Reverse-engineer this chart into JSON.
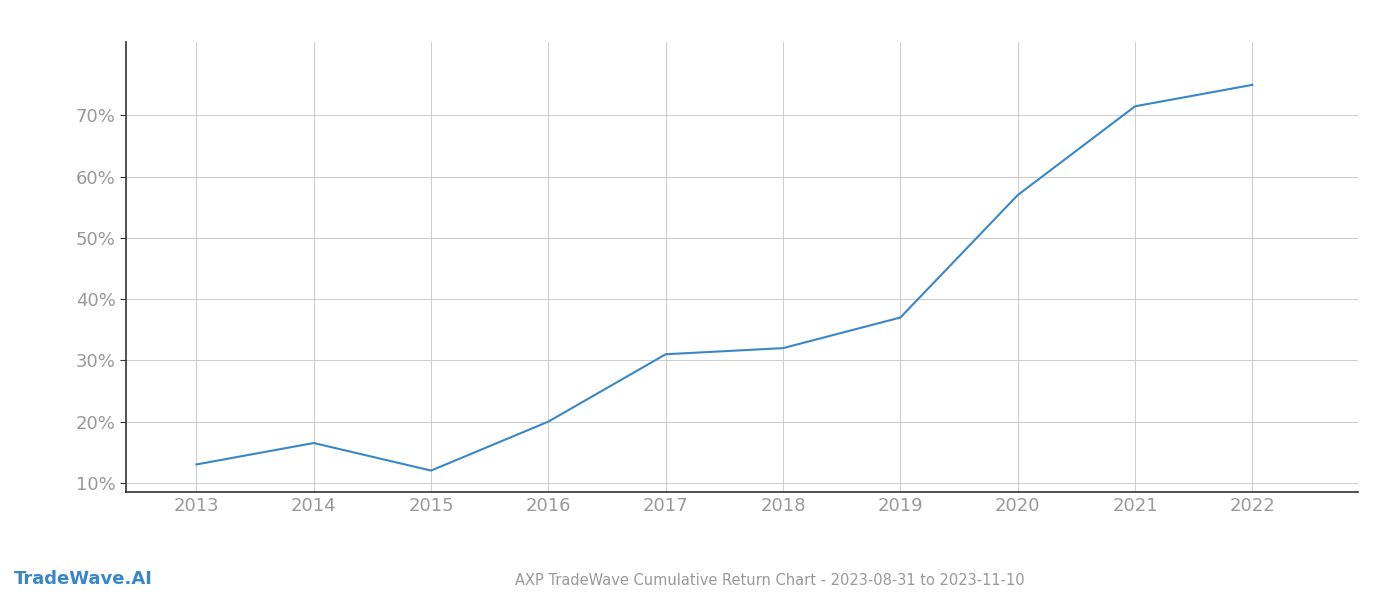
{
  "title": "AXP TradeWave Cumulative Return Chart - 2023-08-31 to 2023-11-10",
  "watermark": "TradeWave.AI",
  "line_color": "#3a87c8",
  "background_color": "#ffffff",
  "grid_color": "#cccccc",
  "x_years": [
    2013,
    2014,
    2015,
    2016,
    2017,
    2018,
    2019,
    2020,
    2021,
    2022
  ],
  "y_values": [
    0.13,
    0.165,
    0.12,
    0.2,
    0.31,
    0.32,
    0.37,
    0.57,
    0.715,
    0.75
  ],
  "xlim": [
    2012.4,
    2022.9
  ],
  "ylim": [
    0.085,
    0.82
  ],
  "yticks": [
    0.1,
    0.2,
    0.3,
    0.4,
    0.5,
    0.6,
    0.7
  ],
  "xticks": [
    2013,
    2014,
    2015,
    2016,
    2017,
    2018,
    2019,
    2020,
    2021,
    2022
  ],
  "line_width": 1.5,
  "title_fontsize": 10.5,
  "tick_fontsize": 13,
  "watermark_fontsize": 13,
  "spine_color": "#333333",
  "tick_color": "#999999",
  "grid_linewidth": 0.7
}
